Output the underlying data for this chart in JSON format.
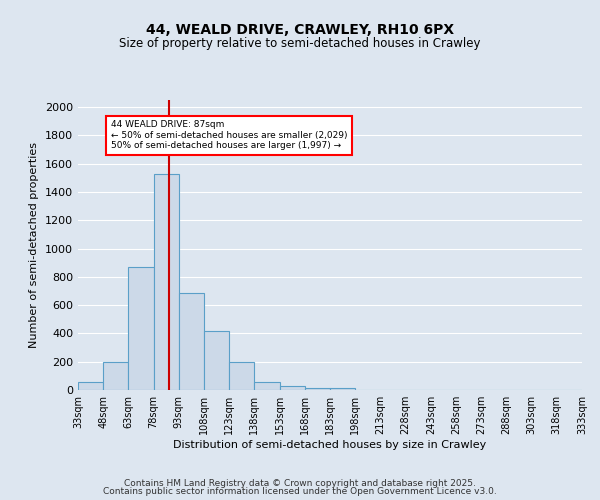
{
  "title1": "44, WEALD DRIVE, CRAWLEY, RH10 6PX",
  "title2": "Size of property relative to semi-detached houses in Crawley",
  "xlabel": "Distribution of semi-detached houses by size in Crawley",
  "ylabel": "Number of semi-detached properties",
  "bar_values": [
    60,
    195,
    870,
    1530,
    685,
    415,
    195,
    60,
    30,
    15,
    15,
    0,
    0,
    0,
    0,
    0,
    0,
    0,
    0,
    0
  ],
  "bin_labels": [
    "33sqm",
    "48sqm",
    "63sqm",
    "78sqm",
    "93sqm",
    "108sqm",
    "123sqm",
    "138sqm",
    "153sqm",
    "168sqm",
    "183sqm",
    "198sqm",
    "213sqm",
    "228sqm",
    "243sqm",
    "258sqm",
    "273sqm",
    "288sqm",
    "303sqm",
    "318sqm",
    "333sqm"
  ],
  "bin_edges": [
    33,
    48,
    63,
    78,
    93,
    108,
    123,
    138,
    153,
    168,
    183,
    198,
    213,
    228,
    243,
    258,
    273,
    288,
    303,
    318,
    333
  ],
  "bar_color": "#ccd9e8",
  "bar_edge_color": "#5a9fc8",
  "property_size": 87,
  "annotation_text_line1": "44 WEALD DRIVE: 87sqm",
  "annotation_text_line2": "← 50% of semi-detached houses are smaller (2,029)",
  "annotation_text_line3": "50% of semi-detached houses are larger (1,997) →",
  "vline_color": "#cc0000",
  "ylim": [
    0,
    2050
  ],
  "yticks": [
    0,
    200,
    400,
    600,
    800,
    1000,
    1200,
    1400,
    1600,
    1800,
    2000
  ],
  "background_color": "#dde6f0",
  "grid_color": "#ffffff",
  "footer1": "Contains HM Land Registry data © Crown copyright and database right 2025.",
  "footer2": "Contains public sector information licensed under the Open Government Licence v3.0."
}
